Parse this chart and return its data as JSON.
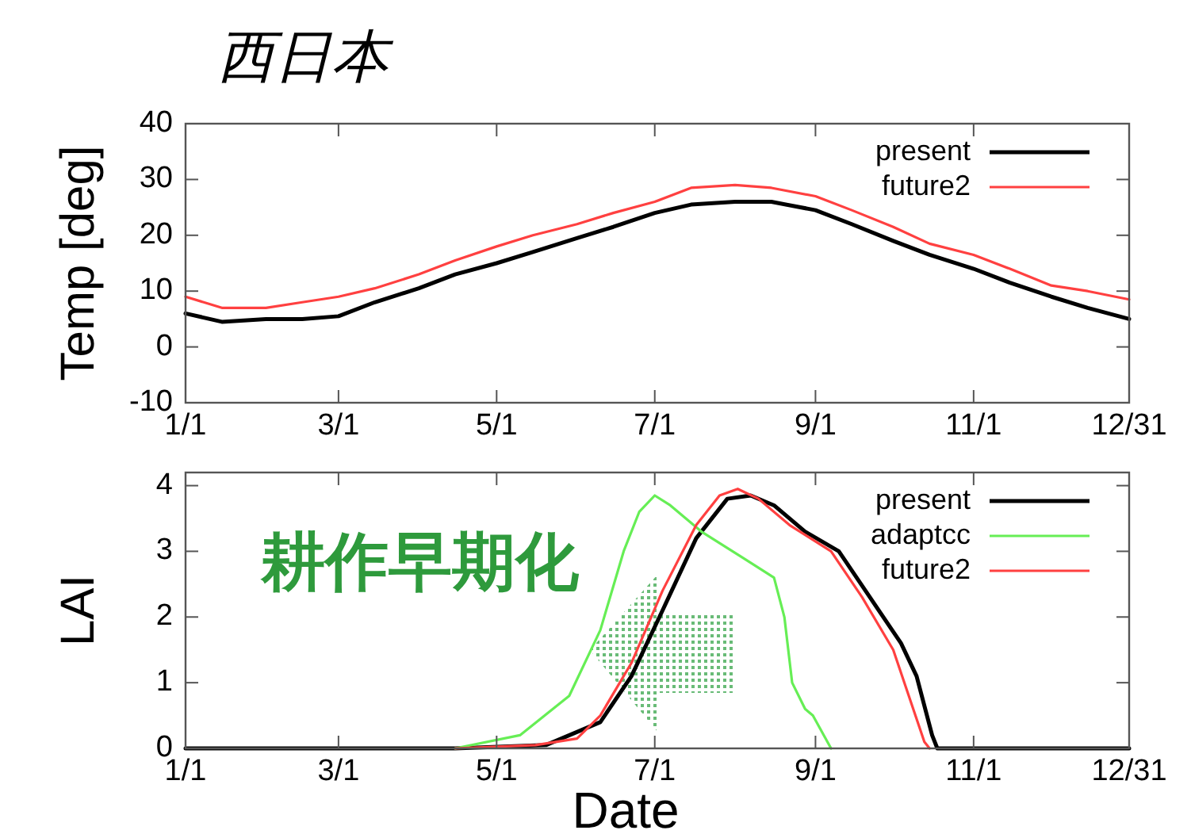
{
  "chart_data": [
    {
      "type": "line",
      "title": "西日本",
      "ylabel": "Temp [deg]",
      "xlim": [
        "--01-01",
        "--12-31"
      ],
      "xticks": [
        {
          "value": "--01-01",
          "label": "1/1"
        },
        {
          "value": "--03-01",
          "label": "3/1"
        },
        {
          "value": "--05-01",
          "label": "5/1"
        },
        {
          "value": "--07-01",
          "label": "7/1"
        },
        {
          "value": "--09-01",
          "label": "9/1"
        },
        {
          "value": "--11-01",
          "label": "11/1"
        },
        {
          "value": "--12-31",
          "label": "12/31"
        }
      ],
      "ylim": [
        -10,
        40
      ],
      "yticks": [
        -10,
        0,
        10,
        20,
        30,
        40
      ],
      "legend": "top right",
      "grid": false,
      "x": [
        "--01-01",
        "--01-15",
        "--02-01",
        "--02-15",
        "--03-01",
        "--03-15",
        "--04-01",
        "--04-15",
        "--05-01",
        "--05-15",
        "--06-01",
        "--06-15",
        "--07-01",
        "--07-15",
        "--08-01",
        "--08-15",
        "--09-01",
        "--09-15",
        "--10-01",
        "--10-15",
        "--11-01",
        "--11-15",
        "--12-01",
        "--12-15",
        "--12-31"
      ],
      "series": [
        {
          "name": "present",
          "color": "#000000",
          "values": [
            6,
            4.5,
            5,
            5,
            5.5,
            8,
            10.5,
            13,
            15,
            17,
            19.5,
            21.5,
            24,
            25.5,
            26,
            26,
            24.5,
            22,
            19,
            16.5,
            14,
            11.5,
            9,
            7,
            5
          ]
        },
        {
          "name": "future2",
          "color": "#ff4040",
          "values": [
            9,
            7,
            7,
            8,
            9,
            10.5,
            13,
            15.5,
            18,
            20,
            22,
            24,
            26,
            28.5,
            29,
            28.5,
            27,
            24.5,
            21.5,
            18.5,
            16.5,
            14,
            11,
            10,
            8.5
          ]
        }
      ]
    },
    {
      "type": "line",
      "xlabel": "Date",
      "ylabel": "LAI",
      "xlim": [
        "--01-01",
        "--12-31"
      ],
      "xticks": [
        {
          "value": "--01-01",
          "label": "1/1"
        },
        {
          "value": "--03-01",
          "label": "3/1"
        },
        {
          "value": "--05-01",
          "label": "5/1"
        },
        {
          "value": "--07-01",
          "label": "7/1"
        },
        {
          "value": "--09-01",
          "label": "9/1"
        },
        {
          "value": "--11-01",
          "label": "11/1"
        },
        {
          "value": "--12-31",
          "label": "12/31"
        }
      ],
      "ylim": [
        0,
        4.2
      ],
      "yticks": [
        0,
        1,
        2,
        3,
        4
      ],
      "legend": "top right",
      "grid": false,
      "annotations": [
        "耕作早期化"
      ],
      "series": [
        {
          "name": "present",
          "color": "#000000",
          "x": [
            "--01-01",
            "--04-15",
            "--05-20",
            "--06-10",
            "--06-22",
            "--07-04",
            "--07-17",
            "--07-29",
            "--08-07",
            "--08-16",
            "--08-28",
            "--09-10",
            "--09-22",
            "--10-04",
            "--10-10",
            "--10-16",
            "--10-18",
            "--12-31"
          ],
          "values": [
            0,
            0,
            0.05,
            0.4,
            1.1,
            2.1,
            3.2,
            3.8,
            3.85,
            3.7,
            3.3,
            3.0,
            2.3,
            1.6,
            1.1,
            0.2,
            0,
            0
          ]
        },
        {
          "name": "adaptcc",
          "color": "#66ee55",
          "x": [
            "--04-15",
            "--05-10",
            "--05-29",
            "--06-10",
            "--06-19",
            "--06-25",
            "--07-01",
            "--07-07",
            "--07-19",
            "--08-04",
            "--08-16",
            "--08-20",
            "--08-23",
            "--08-28",
            "--08-31",
            "--09-07"
          ],
          "values": [
            0,
            0.2,
            0.8,
            1.8,
            3,
            3.6,
            3.85,
            3.7,
            3.3,
            2.9,
            2.6,
            2.0,
            1.0,
            0.6,
            0.5,
            0
          ]
        },
        {
          "name": "future2",
          "color": "#ff4040",
          "x": [
            "--04-15",
            "--05-16",
            "--06-01",
            "--06-10",
            "--06-22",
            "--07-04",
            "--07-17",
            "--07-26",
            "--08-02",
            "--08-10",
            "--08-22",
            "--09-07",
            "--09-19",
            "--10-01",
            "--10-07",
            "--10-13",
            "--10-15"
          ],
          "values": [
            0,
            0.05,
            0.15,
            0.5,
            1.3,
            2.4,
            3.4,
            3.85,
            3.95,
            3.8,
            3.4,
            3.0,
            2.3,
            1.5,
            0.8,
            0.1,
            0
          ]
        }
      ]
    }
  ]
}
